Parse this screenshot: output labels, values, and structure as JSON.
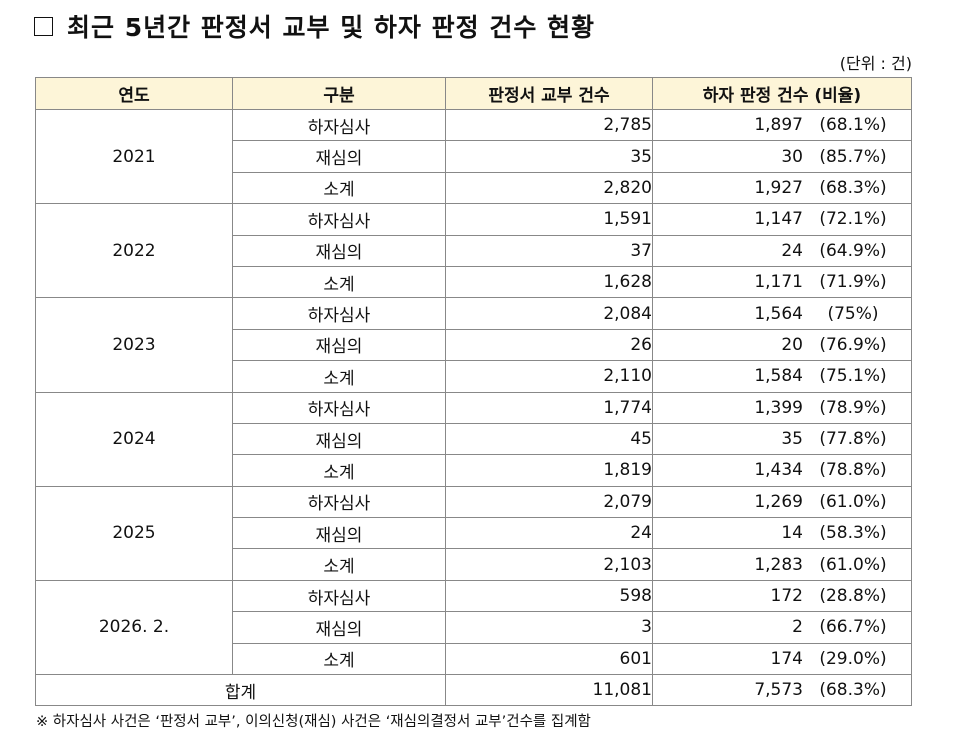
{
  "title": "최근 5년간 판정서 교부 및 하자 판정 건수 현황",
  "unit": "(단위 : 건)",
  "headers": [
    "연도",
    "구분",
    "판정서 교부 건수",
    "하자 판정 건수 (비율)"
  ],
  "years": [
    {
      "year": "2021",
      "rows": [
        {
          "type": "하자심사",
          "issued": "2,785",
          "defects": "1,897",
          "ratio": "(68.1%)"
        },
        {
          "type": "재심의",
          "issued": "35",
          "defects": "30",
          "ratio": "(85.7%)"
        },
        {
          "type": "소계",
          "issued": "2,820",
          "defects": "1,927",
          "ratio": "(68.3%)"
        }
      ]
    },
    {
      "year": "2022",
      "rows": [
        {
          "type": "하자심사",
          "issued": "1,591",
          "defects": "1,147",
          "ratio": "(72.1%)"
        },
        {
          "type": "재심의",
          "issued": "37",
          "defects": "24",
          "ratio": "(64.9%)"
        },
        {
          "type": "소계",
          "issued": "1,628",
          "defects": "1,171",
          "ratio": "(71.9%)"
        }
      ]
    },
    {
      "year": "2023",
      "rows": [
        {
          "type": "하자심사",
          "issued": "2,084",
          "defects": "1,564",
          "ratio": "(75%)"
        },
        {
          "type": "재심의",
          "issued": "26",
          "defects": "20",
          "ratio": "(76.9%)"
        },
        {
          "type": "소계",
          "issued": "2,110",
          "defects": "1,584",
          "ratio": "(75.1%)"
        }
      ]
    },
    {
      "year": "2024",
      "rows": [
        {
          "type": "하자심사",
          "issued": "1,774",
          "defects": "1,399",
          "ratio": "(78.9%)"
        },
        {
          "type": "재심의",
          "issued": "45",
          "defects": "35",
          "ratio": "(77.8%)"
        },
        {
          "type": "소계",
          "issued": "1,819",
          "defects": "1,434",
          "ratio": "(78.8%)"
        }
      ]
    },
    {
      "year": "2025",
      "rows": [
        {
          "type": "하자심사",
          "issued": "2,079",
          "defects": "1,269",
          "ratio": "(61.0%)"
        },
        {
          "type": "재심의",
          "issued": "24",
          "defects": "14",
          "ratio": "(58.3%)"
        },
        {
          "type": "소계",
          "issued": "2,103",
          "defects": "1,283",
          "ratio": "(61.0%)"
        }
      ]
    },
    {
      "year": "2026.  2.",
      "rows": [
        {
          "type": "하자심사",
          "issued": "598",
          "defects": "172",
          "ratio": "(28.8%)"
        },
        {
          "type": "재심의",
          "issued": "3",
          "defects": "2",
          "ratio": "(66.7%)"
        },
        {
          "type": "소계",
          "issued": "601",
          "defects": "174",
          "ratio": "(29.0%)"
        }
      ]
    }
  ],
  "total": {
    "label": "합계",
    "issued": "11,081",
    "defects": "7,573",
    "ratio": "(68.3%)"
  },
  "note": "※ 하자심사 사건은 ‘판정서 교부’, 이의신청(재심) 사건은 ‘재심의결정서 교부’건수를 집계함",
  "colors": {
    "header_bg": "#fdf5d8",
    "border": "#888888"
  }
}
